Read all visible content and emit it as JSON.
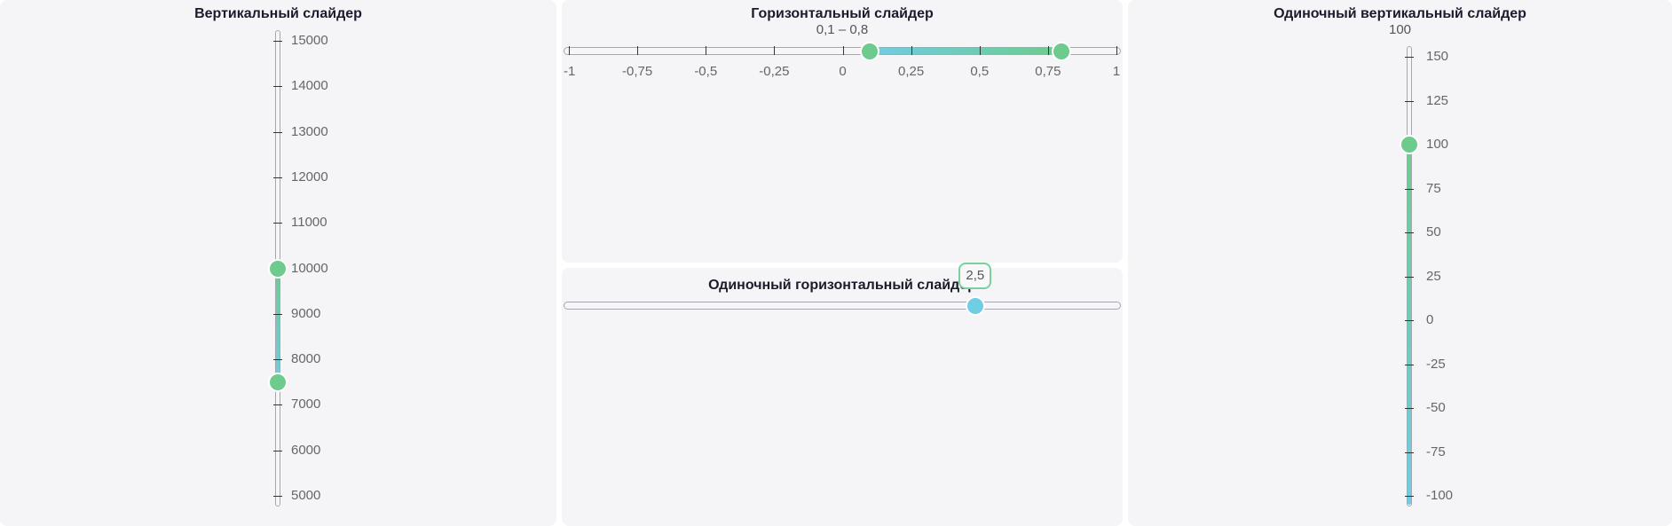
{
  "colors": {
    "green": "#6ecb8e",
    "blue": "#6fcde4",
    "panel_bg": "#f5f5f7",
    "track_border": "#a7a7b2",
    "title_text": "#1b1b2b"
  },
  "vertical_range": {
    "title": "Вертикальный слайдер",
    "min": 5000,
    "max": 15000,
    "value_low": 7500,
    "value_high": 10000,
    "ticks": [
      5000,
      6000,
      7000,
      8000,
      9000,
      10000,
      11000,
      12000,
      13000,
      14000,
      15000
    ],
    "tick_labels": [
      "5000",
      "6000",
      "7000",
      "8000",
      "9000",
      "10000",
      "11000",
      "12000",
      "13000",
      "14000",
      "15000"
    ]
  },
  "horizontal_range": {
    "title": "Горизонтальный слайдер",
    "value_text": "0,1 – 0,8",
    "min": -1,
    "max": 1,
    "value_low": 0.1,
    "value_high": 0.8,
    "ticks": [
      -1,
      -0.75,
      -0.5,
      -0.25,
      0,
      0.25,
      0.5,
      0.75,
      1
    ],
    "tick_labels": [
      "-1",
      "-0,75",
      "-0,5",
      "-0,25",
      "0",
      "0,25",
      "0,5",
      "0,75",
      "1"
    ]
  },
  "single_horizontal": {
    "title": "Одиночный горизонтальный слайдер",
    "tooltip": "2,5",
    "fraction": 0.742
  },
  "single_vertical": {
    "title": "Одиночный вертикальный слайдер",
    "value_text": "100",
    "min": -100,
    "max": 150,
    "value": 100,
    "ticks": [
      -100,
      -75,
      -50,
      -25,
      0,
      25,
      50,
      75,
      100,
      125,
      150
    ],
    "tick_labels": [
      "-100",
      "-75",
      "-50",
      "-25",
      "0",
      "25",
      "50",
      "75",
      "100",
      "125",
      "150"
    ]
  }
}
